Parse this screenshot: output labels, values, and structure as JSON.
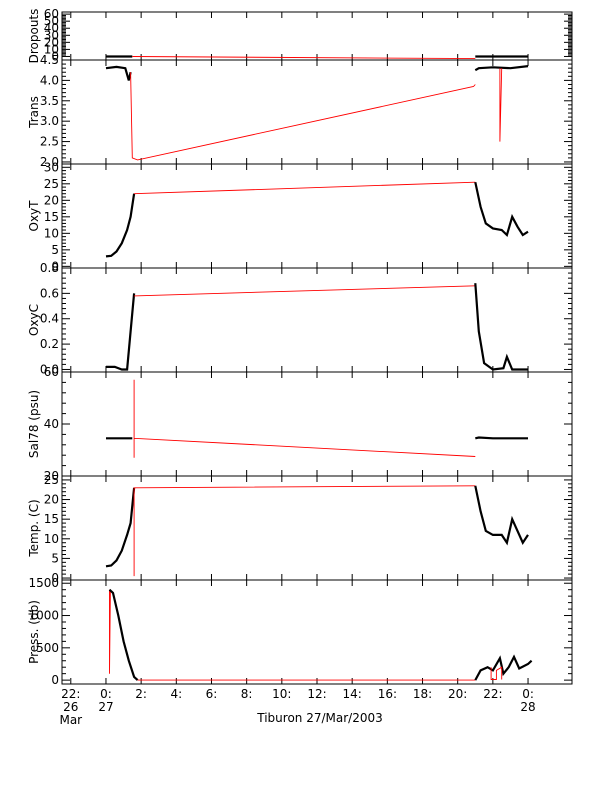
{
  "figure": {
    "caption": "Tiburon 27/Mar/2003"
  },
  "x_axis": {
    "ticks": [
      {
        "t": -2,
        "line1": "22:",
        "line2": "26",
        "line3": "Mar"
      },
      {
        "t": 0,
        "line1": "0:",
        "line2": "27",
        "line3": ""
      },
      {
        "t": 2,
        "line1": "2:",
        "line2": "",
        "line3": ""
      },
      {
        "t": 4,
        "line1": "4:",
        "line2": "",
        "line3": ""
      },
      {
        "t": 6,
        "line1": "6:",
        "line2": "",
        "line3": ""
      },
      {
        "t": 8,
        "line1": "8:",
        "line2": "",
        "line3": ""
      },
      {
        "t": 10,
        "line1": "10:",
        "line2": "",
        "line3": ""
      },
      {
        "t": 12,
        "line1": "12:",
        "line2": "",
        "line3": ""
      },
      {
        "t": 14,
        "line1": "14:",
        "line2": "",
        "line3": ""
      },
      {
        "t": 16,
        "line1": "16:",
        "line2": "",
        "line3": ""
      },
      {
        "t": 18,
        "line1": "18:",
        "line2": "",
        "line3": ""
      },
      {
        "t": 20,
        "line1": "20:",
        "line2": "",
        "line3": ""
      },
      {
        "t": 22,
        "line1": "22:",
        "line2": "",
        "line3": ""
      },
      {
        "t": 24,
        "line1": "0:",
        "line2": "28",
        "line3": ""
      }
    ]
  },
  "colors": {
    "data": "#000000",
    "interp": "#ff0000",
    "frame": "#000000"
  },
  "chart_data": [
    {
      "type": "line",
      "ylabel": "Dropouts",
      "ylim": [
        -5,
        63
      ],
      "yticks": [
        0,
        10,
        20,
        30,
        40,
        50,
        60
      ],
      "series": [
        {
          "style": "data",
          "x": [
            0.0,
            1.5
          ],
          "y": [
            0,
            0
          ]
        },
        {
          "style": "interp",
          "x": [
            1.5,
            21.0
          ],
          "y": [
            0,
            -3
          ]
        },
        {
          "style": "data",
          "x": [
            21.0,
            24.0
          ],
          "y": [
            0,
            0
          ]
        }
      ]
    },
    {
      "type": "line",
      "ylabel": "Trans",
      "ylim": [
        1.95,
        4.5
      ],
      "yticks": [
        2.0,
        2.5,
        3.0,
        3.5,
        4.0,
        4.5
      ],
      "series": [
        {
          "style": "data",
          "x": [
            0.0,
            0.6,
            1.1,
            1.3,
            1.4
          ],
          "y": [
            4.3,
            4.33,
            4.3,
            4.0,
            4.2
          ]
        },
        {
          "style": "interp",
          "x": [
            1.4,
            1.5,
            1.8,
            20.9,
            21.0
          ],
          "y": [
            4.2,
            2.1,
            2.05,
            3.85,
            3.9
          ]
        },
        {
          "style": "data",
          "x": [
            21.0,
            21.2,
            22.0,
            23.0,
            24.0
          ],
          "y": [
            4.25,
            4.3,
            4.32,
            4.3,
            4.35
          ]
        },
        {
          "style": "interp",
          "x": [
            22.4,
            22.4,
            22.5
          ],
          "y": [
            4.3,
            2.5,
            4.3
          ]
        }
      ]
    },
    {
      "type": "line",
      "ylabel": "OxyT",
      "ylim": [
        -0.5,
        31
      ],
      "yticks": [
        0,
        5,
        10,
        15,
        20,
        25,
        30
      ],
      "series": [
        {
          "style": "data",
          "x": [
            0.0,
            0.3,
            0.6,
            0.9,
            1.2,
            1.4,
            1.6
          ],
          "y": [
            3,
            3.2,
            4.5,
            7,
            11,
            15,
            22
          ]
        },
        {
          "style": "interp",
          "x": [
            1.6,
            21.0
          ],
          "y": [
            22,
            25.5
          ]
        },
        {
          "style": "data",
          "x": [
            21.0,
            21.3,
            21.6,
            22.0,
            22.5,
            22.8,
            23.1,
            23.4,
            23.7,
            24.0
          ],
          "y": [
            25.5,
            18,
            13,
            11.5,
            11,
            9.5,
            15,
            12,
            9.5,
            10.5
          ]
        }
      ]
    },
    {
      "type": "line",
      "ylabel": "OxyC",
      "ylim": [
        -0.02,
        0.8
      ],
      "yticks": [
        0.0,
        0.2,
        0.4,
        0.6,
        0.8
      ],
      "series": [
        {
          "style": "data",
          "x": [
            0.0,
            0.5,
            0.9,
            1.2,
            1.4,
            1.6
          ],
          "y": [
            0.02,
            0.02,
            0.0,
            0.0,
            0.3,
            0.6
          ]
        },
        {
          "style": "interp",
          "x": [
            1.6,
            21.0
          ],
          "y": [
            0.58,
            0.66
          ]
        },
        {
          "style": "data",
          "x": [
            21.0,
            21.2,
            21.5,
            22.0,
            22.6,
            22.8,
            23.1,
            23.5,
            24.0
          ],
          "y": [
            0.68,
            0.3,
            0.05,
            0.0,
            0.01,
            0.1,
            0.0,
            0.0,
            0.0
          ]
        }
      ]
    },
    {
      "type": "line",
      "ylabel": "Sal78 (psu)",
      "ylim": [
        20,
        60
      ],
      "yticks": [
        20,
        40,
        60
      ],
      "series": [
        {
          "style": "data",
          "x": [
            0.0,
            1.5
          ],
          "y": [
            34.5,
            34.5
          ]
        },
        {
          "style": "interp",
          "x": [
            1.6,
            1.6,
            1.6,
            21.0
          ],
          "y": [
            57,
            27,
            34.5,
            27.5
          ]
        },
        {
          "style": "data",
          "x": [
            21.0,
            21.2,
            22.0,
            24.0
          ],
          "y": [
            34.5,
            34.8,
            34.5,
            34.5
          ]
        }
      ]
    },
    {
      "type": "line",
      "ylabel": "Temp. (C)",
      "ylim": [
        -0.5,
        26
      ],
      "yticks": [
        0,
        5,
        10,
        15,
        20,
        25
      ],
      "series": [
        {
          "style": "data",
          "x": [
            0.0,
            0.3,
            0.6,
            0.9,
            1.2,
            1.4,
            1.6
          ],
          "y": [
            3,
            3.2,
            4.5,
            7,
            11,
            14,
            23
          ]
        },
        {
          "style": "interp",
          "x": [
            1.6,
            1.6,
            1.6,
            21.0
          ],
          "y": [
            14,
            0.5,
            23,
            23.5
          ]
        },
        {
          "style": "data",
          "x": [
            21.0,
            21.3,
            21.6,
            22.0,
            22.5,
            22.8,
            23.1,
            23.4,
            23.7,
            24.0
          ],
          "y": [
            23.5,
            17,
            12,
            11,
            11,
            9,
            15,
            12,
            9,
            11
          ]
        }
      ]
    },
    {
      "type": "line",
      "ylabel": "Press. (db)",
      "ylim": [
        -60,
        1550
      ],
      "yticks": [
        0,
        500,
        1000,
        1500
      ],
      "series": [
        {
          "style": "interp",
          "x": [
            0.2,
            0.2,
            0.25
          ],
          "y": [
            1400,
            100,
            1400
          ]
        },
        {
          "style": "data",
          "x": [
            0.2,
            0.4,
            0.7,
            1.0,
            1.3,
            1.6,
            1.8
          ],
          "y": [
            1400,
            1350,
            1000,
            600,
            300,
            50,
            0
          ]
        },
        {
          "style": "interp",
          "x": [
            1.8,
            21.0
          ],
          "y": [
            0,
            0
          ]
        },
        {
          "style": "data",
          "x": [
            21.0,
            21.3,
            21.7,
            22.0,
            22.4,
            22.6,
            22.9,
            23.2,
            23.5,
            24.0,
            24.2
          ],
          "y": [
            0,
            150,
            200,
            150,
            340,
            100,
            200,
            360,
            180,
            250,
            300
          ]
        },
        {
          "style": "interp",
          "x": [
            21.9,
            21.9,
            22.2,
            22.2,
            22.5,
            22.5
          ],
          "y": [
            200,
            10,
            10,
            150,
            200,
            10
          ]
        }
      ]
    }
  ]
}
